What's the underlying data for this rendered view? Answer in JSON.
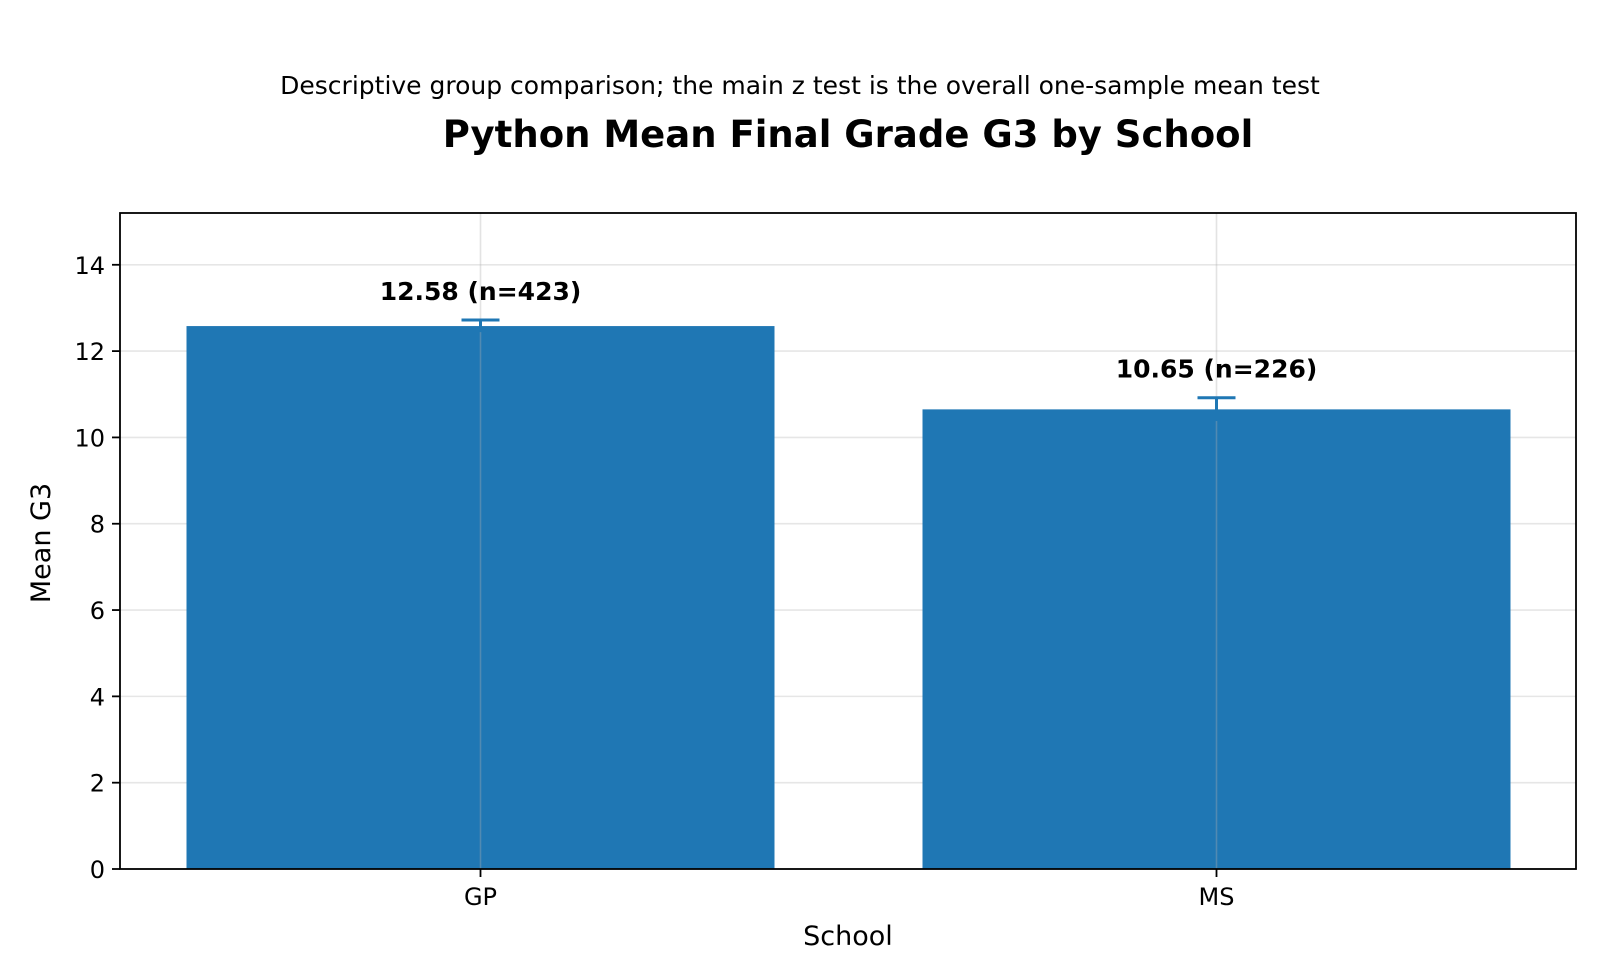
{
  "chart_data": {
    "type": "bar",
    "subtitle": "Descriptive group comparison; the main z test is the overall one-sample mean test",
    "title": "Python Mean Final Grade G3 by School",
    "xlabel": "School",
    "ylabel": "Mean G3",
    "categories": [
      "GP",
      "MS"
    ],
    "values": [
      12.58,
      10.65
    ],
    "error_upper": [
      12.72,
      10.92
    ],
    "error_lower": [
      12.44,
      10.38
    ],
    "data_labels": [
      "12.58 (n=423)",
      "10.65 (n=226)"
    ],
    "ylim": [
      0,
      15.2
    ],
    "yticks": [
      0,
      2,
      4,
      6,
      8,
      10,
      12,
      14
    ],
    "grid": true,
    "bar_color": "#1f77b4",
    "error_color": "#1f77b4"
  }
}
